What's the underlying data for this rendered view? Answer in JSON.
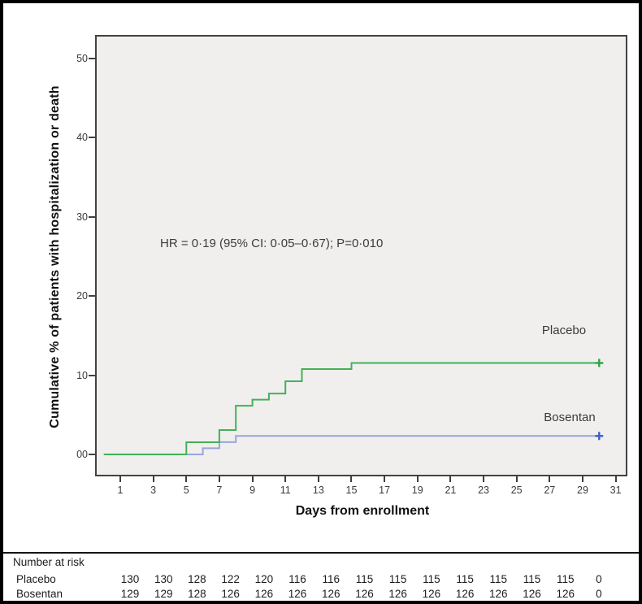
{
  "figure": {
    "annotation": "HR = 0·19 (95% CI: 0·05–0·67); P=0·010"
  },
  "chart_data": {
    "type": "line",
    "subtype": "kaplan-meier-cumulative-incidence-step",
    "title": "",
    "xlabel": "Days from enrollment",
    "ylabel": "Cumulative % of patients with hospitalization or death",
    "xlim": [
      0,
      31.5
    ],
    "ylim": [
      0,
      53
    ],
    "grid": false,
    "plot_background": "#f0efee",
    "x_ticks": [
      1,
      3,
      5,
      7,
      9,
      11,
      13,
      15,
      17,
      19,
      21,
      23,
      25,
      27,
      29,
      31
    ],
    "y_ticks": [
      {
        "value": 50,
        "label": "50"
      },
      {
        "value": 40,
        "label": "40"
      },
      {
        "value": 30,
        "label": "30"
      },
      {
        "value": 20,
        "label": "20"
      },
      {
        "value": 10,
        "label": "10"
      },
      {
        "value": 0,
        "label": "00"
      }
    ],
    "annotation": "HR = 0·19 (95% CI: 0·05–0·67); P=0·010",
    "series": [
      {
        "name": "placebo",
        "label": "Placebo",
        "color": "#42b256",
        "censor_color": "#2aa348",
        "steps_day_pct": [
          [
            0,
            0
          ],
          [
            5,
            1.54
          ],
          [
            7,
            3.08
          ],
          [
            8,
            6.15
          ],
          [
            9,
            6.92
          ],
          [
            10,
            7.69
          ],
          [
            11,
            9.23
          ],
          [
            12,
            10.77
          ],
          [
            15,
            11.54
          ]
        ],
        "end_day": 30.2,
        "censor_day": 30
      },
      {
        "name": "bosentan",
        "label": "Bosentan",
        "color": "#98a6d9",
        "censor_color": "#3d5ec4",
        "steps_day_pct": [
          [
            0,
            0
          ],
          [
            6,
            0.78
          ],
          [
            7,
            1.55
          ],
          [
            8,
            2.33
          ]
        ],
        "end_day": 30.2,
        "censor_day": 30
      }
    ]
  },
  "risk_table": {
    "title": "Number at risk",
    "rows": [
      {
        "label": "Placebo",
        "values": [
          "130",
          "130",
          "128",
          "122",
          "120",
          "116",
          "116",
          "115",
          "115",
          "115",
          "115",
          "115",
          "115",
          "115",
          "0"
        ]
      },
      {
        "label": "Bosentan",
        "values": [
          "129",
          "129",
          "128",
          "126",
          "126",
          "126",
          "126",
          "126",
          "126",
          "126",
          "126",
          "126",
          "126",
          "126",
          "0"
        ]
      }
    ]
  }
}
